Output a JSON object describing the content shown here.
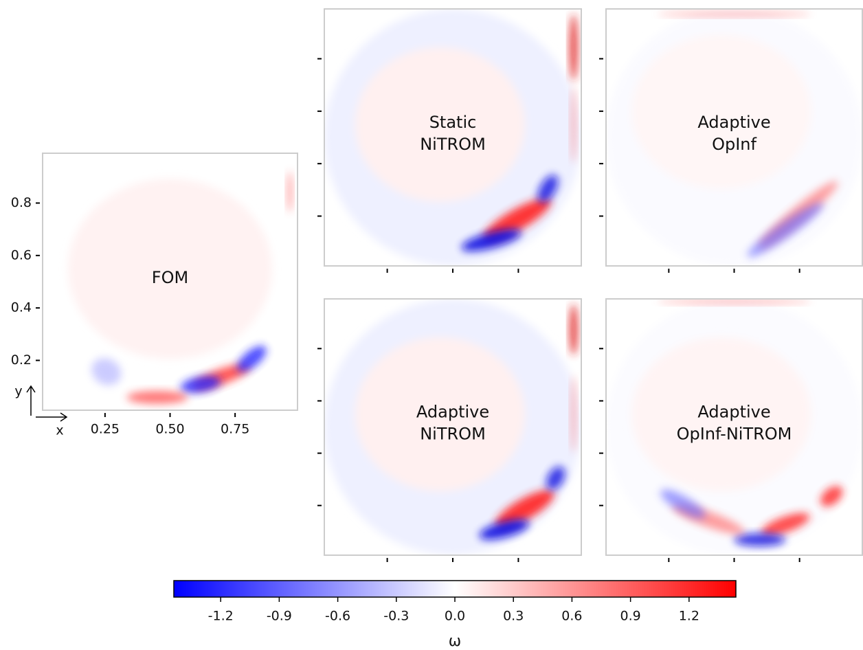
{
  "panels": [
    {
      "title": [
        "FOM"
      ]
    },
    {
      "title": [
        "Static",
        "NiTROM"
      ]
    },
    {
      "title": [
        "Adaptive",
        "OpInf"
      ]
    },
    {
      "title": [
        "Adaptive",
        "NiTROM"
      ]
    },
    {
      "title": [
        "Adaptive",
        "OpInf-NiTROM"
      ]
    }
  ],
  "axes": {
    "xlabel": "x",
    "ylabel": "y",
    "xlim": [
      0.01,
      0.99
    ],
    "ylim": [
      0.01,
      0.99
    ],
    "xticks": [
      0.25,
      {
        "value": 0.5,
        "label": "0.50"
      },
      0.75
    ],
    "yticks": [
      0.2,
      0.4,
      0.6,
      0.8
    ]
  },
  "colorbar": {
    "label": "ω",
    "lim": [
      -1.44,
      1.44
    ],
    "ticks": [
      -1.2,
      -0.9,
      -0.6,
      -0.3,
      {
        "value": 0,
        "label": "0.0"
      },
      0.3,
      0.6,
      0.9,
      1.2
    ]
  }
}
